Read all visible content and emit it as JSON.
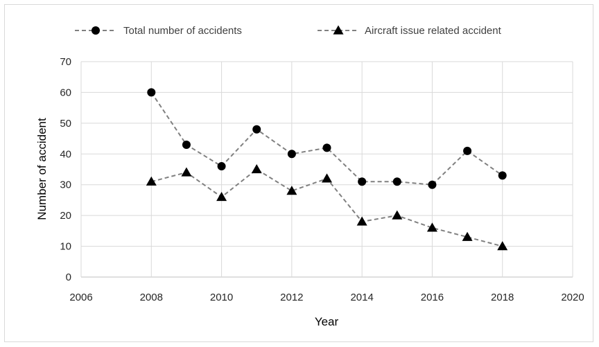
{
  "chart_data": {
    "type": "scatter",
    "title": "",
    "xlabel": "Year",
    "ylabel": "Number of accident",
    "xlim": [
      2006,
      2020
    ],
    "ylim": [
      0,
      70
    ],
    "xticks": [
      "2006",
      "2008",
      "2010",
      "2012",
      "2014",
      "2016",
      "2018",
      "2020"
    ],
    "yticks": [
      "0",
      "10",
      "20",
      "30",
      "40",
      "50",
      "60",
      "70"
    ],
    "grid": true,
    "legend_position": "top",
    "series": [
      {
        "name": "Total number of accidents",
        "marker": "circle",
        "line_style": "dashed",
        "color": "#808080",
        "marker_color": "#000000",
        "x": [
          2008,
          2009,
          2010,
          2011,
          2012,
          2013,
          2014,
          2015,
          2016,
          2017,
          2018
        ],
        "y": [
          60,
          43,
          36,
          48,
          40,
          42,
          31,
          31,
          30,
          41,
          33
        ]
      },
      {
        "name": "Aircraft issue related accident",
        "marker": "triangle",
        "line_style": "dashed",
        "color": "#808080",
        "marker_color": "#000000",
        "x": [
          2008,
          2009,
          2010,
          2011,
          2012,
          2013,
          2014,
          2015,
          2016,
          2017,
          2018
        ],
        "y": [
          31,
          34,
          26,
          35,
          28,
          32,
          18,
          20,
          16,
          13,
          10
        ]
      }
    ]
  }
}
